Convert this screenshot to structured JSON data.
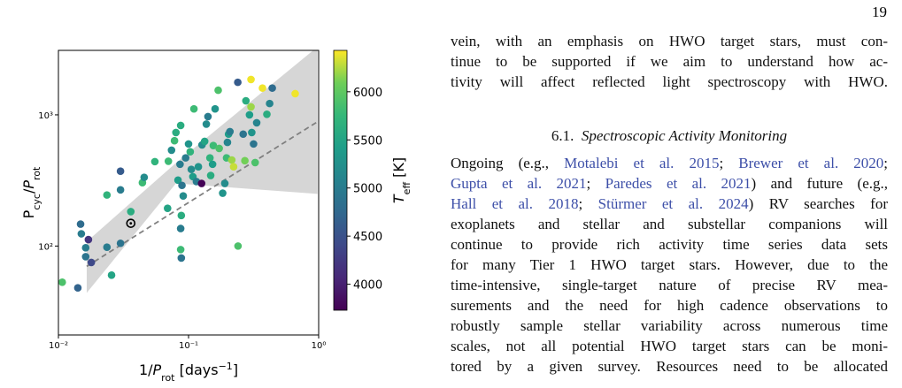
{
  "page_number": "19",
  "chart_data": {
    "type": "scatter",
    "log_x": true,
    "log_y": true,
    "colormap": "viridis",
    "xlabel": [
      "1/",
      "P",
      "rot",
      " [days",
      "−1",
      "]"
    ],
    "ylabel": [
      "P",
      "cyc",
      "/",
      "P",
      "rot"
    ],
    "colorbar_label": [
      "T",
      "eff",
      " [K]"
    ],
    "xlim": [
      0.01,
      1
    ],
    "ylim": [
      21,
      3100
    ],
    "clim": [
      3730,
      6430
    ],
    "xticks": [
      {
        "value": 0.01,
        "label": "10⁻²"
      },
      {
        "value": 0.1,
        "label": "10⁻¹"
      },
      {
        "value": 1,
        "label": "10⁰"
      }
    ],
    "yticks": [
      {
        "value": 100,
        "label": "10²"
      },
      {
        "value": 1000,
        "label": "10³"
      }
    ],
    "cticks": [
      4000,
      4500,
      5000,
      5500,
      6000
    ],
    "x": [
      0.0107,
      0.0141,
      0.0148,
      0.015,
      0.0162,
      0.0162,
      0.017,
      0.0179,
      0.0236,
      0.0236,
      0.0256,
      0.03,
      0.03,
      0.03,
      0.0442,
      0.0456,
      0.0551,
      0.07,
      0.074,
      0.078,
      0.08,
      0.087,
      0.083,
      0.086,
      0.089,
      0.091,
      0.088,
      0.087,
      0.087,
      0.088,
      0.095,
      0.1,
      0.103,
      0.105,
      0.108,
      0.11,
      0.115,
      0.126,
      0.119,
      0.127,
      0.133,
      0.137,
      0.141,
      0.146,
      0.148,
      0.153,
      0.155,
      0.16,
      0.169,
      0.172,
      0.183,
      0.19,
      0.196,
      0.199,
      0.203,
      0.208,
      0.215,
      0.222,
      0.239,
      0.24,
      0.263,
      0.271,
      0.276,
      0.294,
      0.302,
      0.302,
      0.306,
      0.316,
      0.325,
      0.334,
      0.37,
      0.4,
      0.42,
      0.44,
      0.66,
      0.069,
      0.036
    ],
    "y": [
      53,
      48,
      147,
      124,
      97,
      83,
      112,
      75,
      245,
      98,
      60,
      372,
      268,
      105,
      304,
      334,
      440,
      443,
      538,
      635,
      733,
      830,
      318,
      420,
      290,
      241,
      171,
      136,
      94,
      81,
      470,
      600,
      523,
      384,
      338,
      1110,
      310,
      300,
      402,
      590,
      628,
      850,
      970,
      470,
      345,
      420,
      583,
      1110,
      1540,
      555,
      253,
      300,
      470,
      617,
      713,
      745,
      453,
      402,
      1770,
      100,
      713,
      447,
      1280,
      1000,
      1150,
      1860,
      733,
      600,
      433,
      870,
      1600,
      1010,
      1220,
      1600,
      1450,
      194,
      183
    ],
    "c": [
      5900,
      4700,
      4800,
      5000,
      5000,
      4900,
      4200,
      4400,
      5700,
      5000,
      5500,
      4600,
      5000,
      4900,
      5800,
      5200,
      5700,
      5800,
      5200,
      5800,
      5600,
      5600,
      5400,
      5000,
      4900,
      5200,
      5600,
      5000,
      5800,
      4900,
      5000,
      5300,
      5700,
      5200,
      5400,
      5800,
      5000,
      3750,
      5300,
      5200,
      5500,
      5200,
      5000,
      5700,
      5600,
      5400,
      5800,
      5300,
      5900,
      5900,
      5300,
      5200,
      5800,
      5100,
      5400,
      5000,
      6200,
      6300,
      4600,
      5900,
      4900,
      6100,
      5600,
      5400,
      6200,
      6400,
      5300,
      4900,
      5900,
      5100,
      6400,
      5600,
      5100,
      4800,
      6400,
      5500,
      5600
    ],
    "sun": {
      "x": 0.036,
      "y": 149
    },
    "fit": {
      "x": [
        0.0165,
        0.98
      ],
      "y": [
        70,
        886
      ]
    },
    "band": {
      "x": [
        0.0165,
        0.08,
        0.98
      ],
      "upper": [
        108,
        430,
        3300
      ],
      "lower": [
        44,
        300,
        250
      ]
    }
  },
  "text": {
    "intro": [
      "vein, with an emphasis on HWO target stars, must con-",
      "tinue to be supported if we aim to understand how ac-",
      "tivity will affect reflected light spectroscopy with HWO."
    ],
    "heading": {
      "number": "6.1.",
      "title": "Spectroscopic Activity Monitoring"
    },
    "paragraph": [
      [
        "Ongoing (e.g., ",
        {
          "cite": "Motalebi et al. 2015"
        },
        "; ",
        {
          "cite": "Brewer et al. 2020"
        },
        ";"
      ],
      [
        {
          "cite": "Gupta et al. 2021"
        },
        "; ",
        {
          "cite": "Paredes et al. 2021"
        },
        ") and future (e.g.,"
      ],
      [
        {
          "cite": "Hall et al. 2018"
        },
        "; ",
        {
          "cite": "Stürmer et al. 2024"
        },
        ") RV searches for"
      ],
      [
        "exoplanets and stellar and substellar companions will"
      ],
      [
        "continue to provide rich activity time series data sets"
      ],
      [
        "for many Tier 1 HWO target stars. However, due to the"
      ],
      [
        "time-intensive, single-target nature of precise RV mea-"
      ],
      [
        "surements and the need for high cadence observations to"
      ],
      [
        "robustly sample stellar variability across numerous time"
      ],
      [
        "scales, not all potential HWO target stars can be moni-"
      ],
      [
        "tored by a given survey. Resources need to be allocated"
      ]
    ]
  }
}
